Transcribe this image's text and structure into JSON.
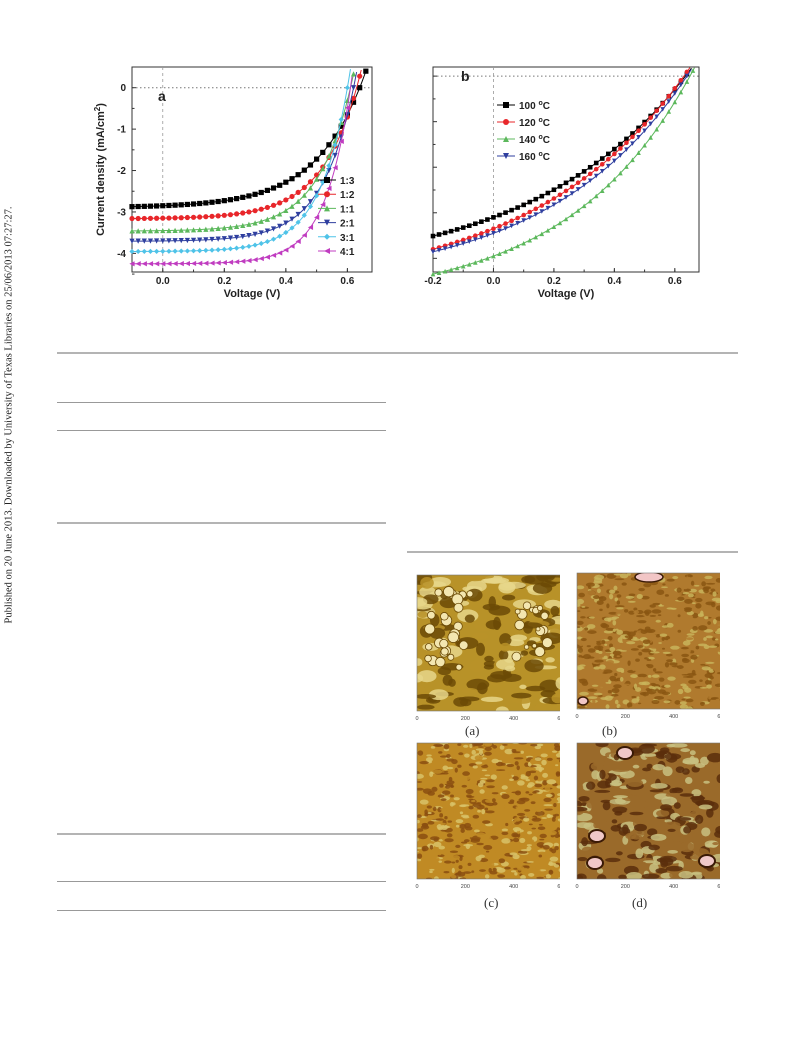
{
  "side_note": "Published on 20 June 2013. Downloaded by University of Texas Libraries on 25/06/2013 07:27:27.",
  "chart_data": [
    {
      "type": "line",
      "panel_label": "a",
      "xlabel": "Voltage (V)",
      "ylabel": "Current density (mA/cm",
      "ylabel_sup": "2",
      "ylabel_tail": ")",
      "xlim": [
        -0.1,
        0.68
      ],
      "ylim": [
        -4.45,
        0.5
      ],
      "xticks": [
        0.0,
        0.2,
        0.4,
        0.6
      ],
      "xtick_labels": [
        "0.0",
        "0.2",
        "0.4",
        "0.6"
      ],
      "yticks": [
        0,
        -1,
        -2,
        -3,
        -4
      ],
      "ytick_labels": [
        "0",
        "-1",
        "-2",
        "-3",
        "-4"
      ],
      "legend_position": "lower-right",
      "series": [
        {
          "name": "1:3",
          "color": "#000000",
          "marker": "square",
          "jsc": 2.85,
          "voc": 0.64,
          "n": 6.0
        },
        {
          "name": "1:2",
          "color": "#e8262a",
          "marker": "circle",
          "jsc": 3.15,
          "voc": 0.63,
          "n": 4.6
        },
        {
          "name": "1:1",
          "color": "#5cb85c",
          "marker": "triangle-up",
          "jsc": 3.45,
          "voc": 0.61,
          "n": 4.2
        },
        {
          "name": "2:1",
          "color": "#2f3f9f",
          "marker": "triangle-down",
          "jsc": 3.7,
          "voc": 0.62,
          "n": 4.0
        },
        {
          "name": "3:1",
          "color": "#4fc3e8",
          "marker": "diamond",
          "jsc": 3.95,
          "voc": 0.6,
          "n": 3.6
        },
        {
          "name": "4:1",
          "color": "#c03cc0",
          "marker": "triangle-left",
          "jsc": 4.25,
          "voc": 0.61,
          "n": 3.2
        }
      ]
    },
    {
      "type": "line",
      "panel_label": "b",
      "xlabel": "Voltage (V)",
      "xlim": [
        -0.2,
        0.68
      ],
      "ylim": [
        -4.3,
        0.2
      ],
      "xticks": [
        -0.2,
        0.0,
        0.2,
        0.4,
        0.6
      ],
      "xtick_labels": [
        "-0.2",
        "0.0",
        "0.2",
        "0.4",
        "0.6"
      ],
      "legend_position": "top-left",
      "series": [
        {
          "name": "100 °C",
          "label_num": "100",
          "label_unit": "C",
          "color": "#000000",
          "marker": "square",
          "jsc": 3.1,
          "voc": 0.635,
          "n": 20
        },
        {
          "name": "120 °C",
          "label_num": "120",
          "label_unit": "C",
          "color": "#e8262a",
          "marker": "circle",
          "jsc": 3.35,
          "voc": 0.63,
          "n": 20
        },
        {
          "name": "140 °C",
          "label_num": "140",
          "label_unit": "C",
          "color": "#5cb85c",
          "marker": "triangle-up",
          "jsc": 3.95,
          "voc": 0.65,
          "n": 16
        },
        {
          "name": "160 °C",
          "label_num": "160",
          "label_unit": "C",
          "color": "#2f3f9f",
          "marker": "triangle-down",
          "jsc": 3.45,
          "voc": 0.64,
          "n": 18
        }
      ]
    }
  ],
  "afm_panels": [
    {
      "caption": "(a)",
      "x_ticks": [
        "0",
        "200",
        "400",
        "600"
      ],
      "y_ticks": [
        "600",
        "400",
        "200",
        "0"
      ],
      "colors": {
        "dark": "#6b4a06",
        "mid": "#b89228",
        "light": "#e6d68a"
      },
      "kind": "blobs"
    },
    {
      "caption": "(b)",
      "x_ticks": [
        "0",
        "200",
        "400",
        "600"
      ],
      "y_ticks": [
        "600",
        "400",
        "200",
        "0"
      ],
      "colors": {
        "dark": "#8a5612",
        "mid": "#b07a2e",
        "light": "#c9b45a"
      },
      "kind": "fine"
    },
    {
      "caption": "(c)",
      "x_ticks": [
        "0",
        "200",
        "400",
        "600"
      ],
      "y_ticks": [
        "600",
        "400",
        "200",
        "0"
      ],
      "colors": {
        "dark": "#8a4e10",
        "mid": "#c08a24",
        "light": "#d8c268"
      },
      "kind": "fine"
    },
    {
      "caption": "(d)",
      "x_ticks": [
        "0",
        "200",
        "400",
        "600"
      ],
      "y_ticks": [
        "600",
        "400",
        "200",
        "0"
      ],
      "colors": {
        "dark": "#5a2e0c",
        "mid": "#9a6a2a",
        "light": "#c8c080"
      },
      "kind": "patchy"
    }
  ]
}
